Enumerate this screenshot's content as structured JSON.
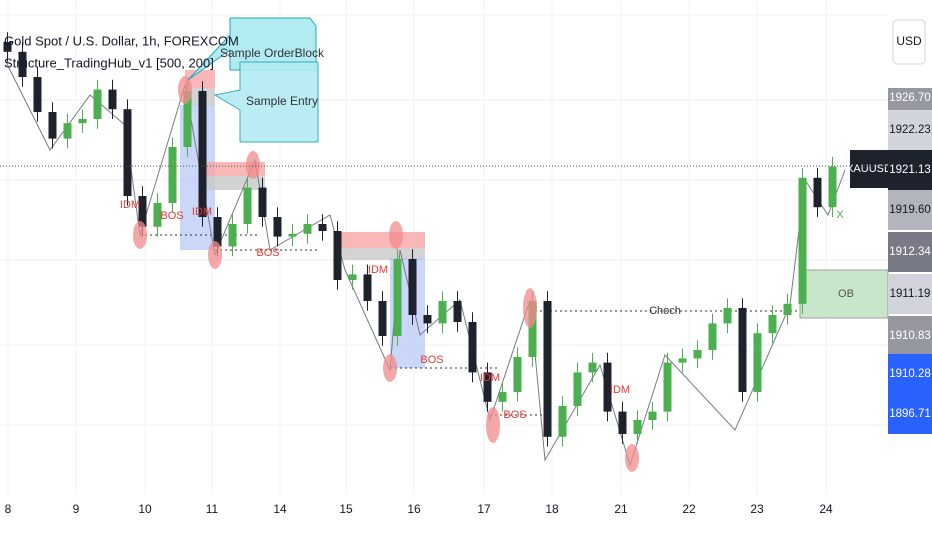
{
  "chart_data": {
    "type": "candlestick",
    "title": "Gold Spot / U.S. Dollar, 1h, FOREXCOM",
    "indicator": "Structure_TradingHub_v1 [500, 200]",
    "callouts": [
      "Sample OrderBlock",
      "Sample Entry"
    ],
    "currency": "USD",
    "symbol": "XAUUSD",
    "categories": [
      "8",
      "9",
      "10",
      "11",
      "14",
      "15",
      "16",
      "17",
      "18",
      "21",
      "22",
      "23",
      "24"
    ],
    "ylim": [
      1898,
      1933
    ],
    "up_color": "#4caf50",
    "down_color": "#1e222d",
    "open": [
      1930.0,
      1929.3,
      1927.5,
      1925.0,
      1923.1,
      1924.2,
      1924.5,
      1926.6,
      1925.2,
      1919.0,
      1916.8,
      1918.5,
      1922.5,
      1926.5,
      1917.5,
      1915.4,
      1917.0,
      1919.6,
      1917.5,
      1916.1,
      1916.3,
      1917.0,
      1916.5,
      1913.0,
      1913.4,
      1911.5,
      1909.0,
      1914.5,
      1910.5,
      1909.9,
      1911.5,
      1910.0,
      1906.4,
      1904.3,
      1905.0,
      1907.5,
      1911.5,
      1901.8,
      1904.0,
      1906.4,
      1907.1,
      1903.6,
      1902.0,
      1903.0,
      1903.6,
      1907.1,
      1907.4,
      1908.0,
      1909.9,
      1911.0,
      1905.0,
      1909.2,
      1910.5,
      1911.3,
      1920.3,
      1918.2
    ],
    "high": [
      1930.7,
      1930.0,
      1928.2,
      1925.7,
      1924.9,
      1925.2,
      1927.3,
      1927.3,
      1925.9,
      1919.7,
      1919.2,
      1923.2,
      1927.2,
      1927.2,
      1918.2,
      1917.7,
      1920.3,
      1920.3,
      1918.2,
      1917.0,
      1917.7,
      1917.7,
      1917.2,
      1914.1,
      1914.1,
      1912.2,
      1915.2,
      1915.2,
      1911.2,
      1912.2,
      1912.2,
      1910.7,
      1907.1,
      1905.7,
      1908.2,
      1912.2,
      1912.2,
      1904.7,
      1907.1,
      1907.8,
      1907.8,
      1904.3,
      1903.7,
      1904.3,
      1907.8,
      1908.1,
      1908.7,
      1910.6,
      1911.7,
      1911.7,
      1909.9,
      1911.2,
      1912.0,
      1921.0,
      1921.0,
      1921.8
    ],
    "low": [
      1928.6,
      1926.8,
      1924.3,
      1922.4,
      1922.4,
      1923.5,
      1923.8,
      1924.5,
      1918.3,
      1916.1,
      1916.1,
      1917.8,
      1921.8,
      1916.8,
      1914.7,
      1914.7,
      1916.3,
      1916.8,
      1915.4,
      1915.4,
      1915.6,
      1915.8,
      1912.3,
      1912.3,
      1910.8,
      1908.3,
      1908.3,
      1909.8,
      1909.2,
      1909.2,
      1909.3,
      1905.7,
      1903.6,
      1903.6,
      1904.3,
      1906.8,
      1901.1,
      1901.1,
      1903.3,
      1905.7,
      1902.9,
      1901.3,
      1901.3,
      1902.3,
      1902.9,
      1906.4,
      1906.7,
      1907.3,
      1909.2,
      1904.3,
      1904.3,
      1908.5,
      1909.8,
      1910.6,
      1917.5,
      1917.5
    ],
    "close": [
      1929.3,
      1927.5,
      1925.0,
      1923.1,
      1924.2,
      1924.5,
      1926.6,
      1925.2,
      1919.0,
      1916.8,
      1918.5,
      1922.5,
      1926.5,
      1917.5,
      1915.4,
      1917.0,
      1919.6,
      1917.5,
      1916.1,
      1916.3,
      1917.0,
      1916.5,
      1913.0,
      1913.4,
      1911.5,
      1909.0,
      1914.5,
      1910.5,
      1909.9,
      1911.5,
      1910.0,
      1906.4,
      1904.3,
      1905.0,
      1907.5,
      1911.5,
      1901.8,
      1904.0,
      1906.4,
      1907.1,
      1903.6,
      1902.0,
      1903.0,
      1903.6,
      1907.1,
      1907.4,
      1908.0,
      1909.9,
      1911.0,
      1905.0,
      1909.2,
      1910.5,
      1911.3,
      1920.3,
      1918.2,
      1921.1
    ],
    "price_labels": [
      {
        "value": 1926.7,
        "label": "1926.70"
      },
      1922.23,
      1921.13,
      {
        "value": 1919.6,
        "label": "1919.60"
      },
      1912.34,
      1911.19,
      1910.83,
      1910.28,
      1896.71
    ],
    "price_label_colors": [
      "#9598a1",
      "#d1d4dc",
      "#1e222d",
      "#b2b5be",
      "#787b86",
      "#d1d4dc",
      "#9598a1",
      "#2962ff",
      "#2962ff"
    ],
    "labels": [
      "IDM",
      "BOS",
      "IDM",
      "BOS",
      "IDM",
      "BOS",
      "IDM",
      "BOS",
      "IDM",
      "Choch",
      "OB",
      "X"
    ]
  }
}
